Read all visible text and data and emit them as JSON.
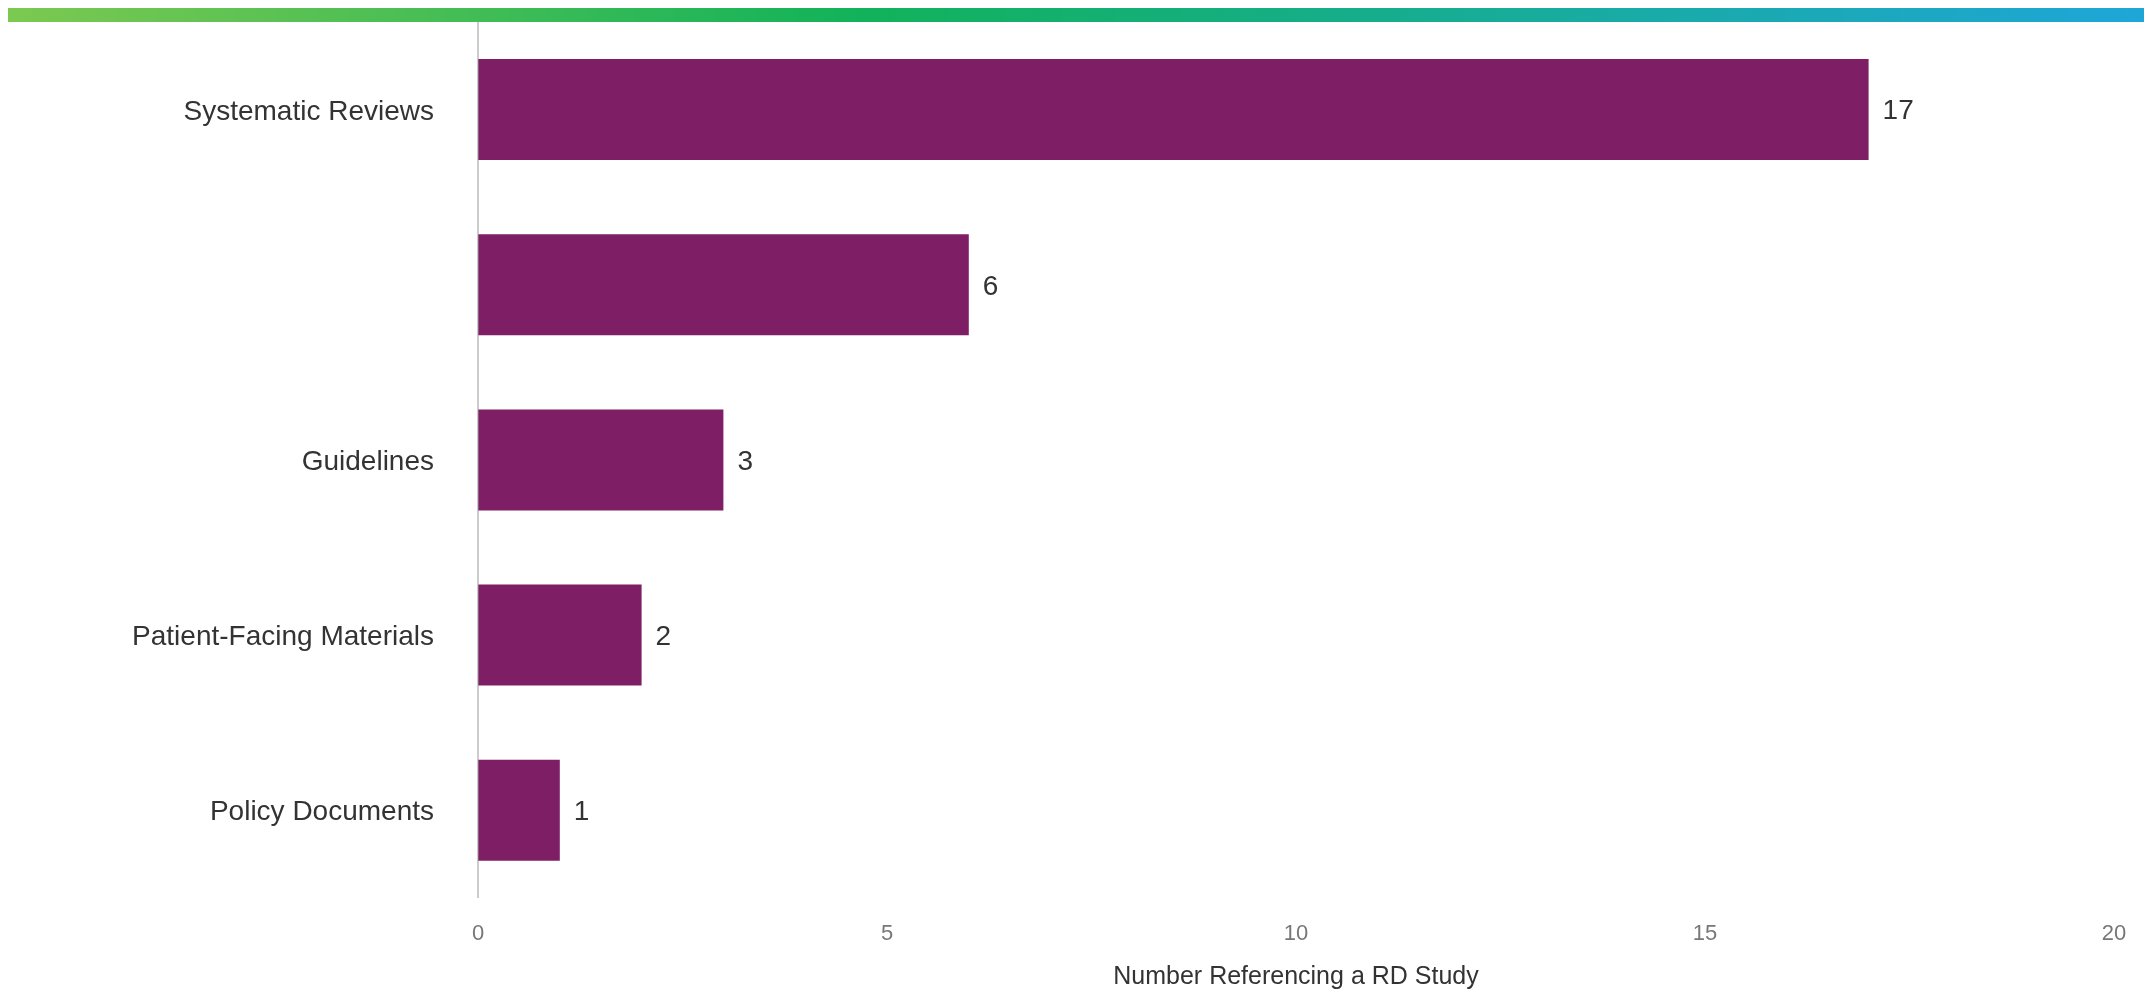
{
  "chart_data": {
    "type": "bar",
    "orientation": "horizontal",
    "categories": [
      "Systematic Reviews",
      null,
      "Guidelines",
      "Patient-Facing Materials",
      "Policy Documents"
    ],
    "values": [
      17,
      6,
      3,
      2,
      1
    ],
    "color": "#7e1f66",
    "xlabel": "Number Referencing a RD Study",
    "xlim": [
      0,
      20
    ],
    "xticks": [
      0,
      5,
      10,
      15,
      20
    ],
    "data_labels": true,
    "grid": false
  }
}
